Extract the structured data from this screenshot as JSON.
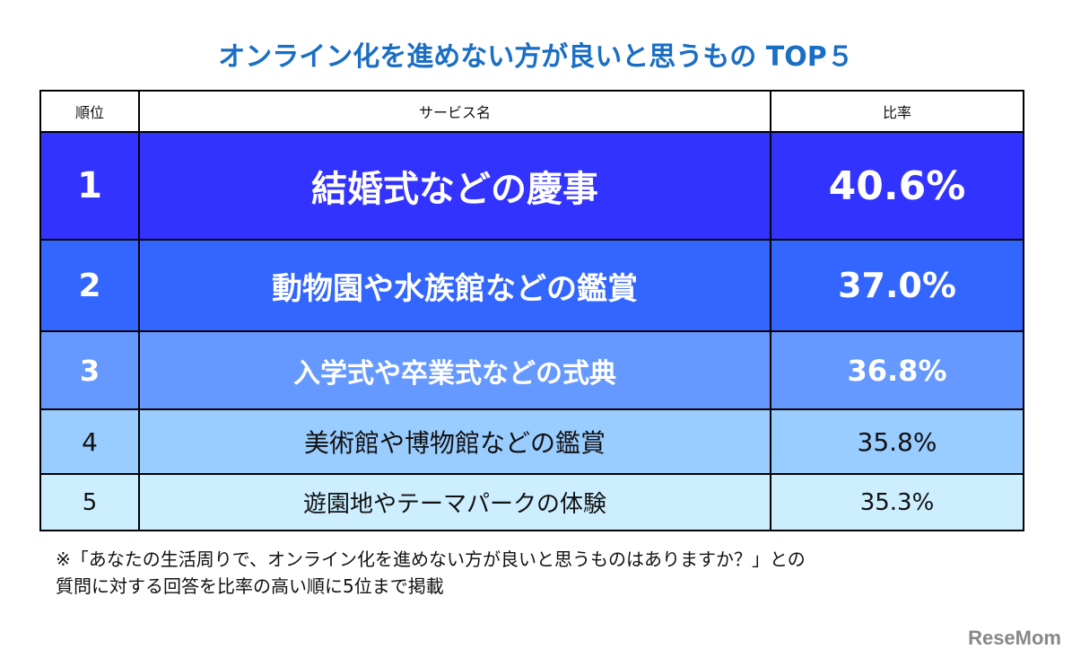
{
  "title": "オンライン化を進めない方が良いと思うもの TOP５",
  "table": {
    "headers": [
      "順位",
      "サービス名",
      "比率"
    ],
    "rows": [
      {
        "rank": "1",
        "name": "結婚式などの慶事",
        "rate": "40.6%",
        "bg": "#3333ff"
      },
      {
        "rank": "2",
        "name": "動物園や水族館などの鑑賞",
        "rate": "37.0%",
        "bg": "#3366ff"
      },
      {
        "rank": "3",
        "name": "入学式や卒業式などの式典",
        "rate": "36.8%",
        "bg": "#6699ff"
      },
      {
        "rank": "4",
        "name": "美術館や博物館などの鑑賞",
        "rate": "35.8%",
        "bg": "#99ccff"
      },
      {
        "rank": "5",
        "name": "遊園地やテーマパークの体験",
        "rate": "35.3%",
        "bg": "#cceeff"
      }
    ]
  },
  "note": {
    "line1": "※「あなたの生活周りで、オンライン化を進めない方が良いと思うものはありますか？」との",
    "line2": "質問に対する回答を比率の高い順に5位まで掲載"
  },
  "logo": "ReseMom",
  "chart_data": {
    "type": "table",
    "title": "オンライン化を進めない方が良いと思うもの TOP５",
    "columns": [
      "順位",
      "サービス名",
      "比率"
    ],
    "categories": [
      "結婚式などの慶事",
      "動物園や水族館などの鑑賞",
      "入学式や卒業式などの式典",
      "美術館や博物館などの鑑賞",
      "遊園地やテーマパークの体験"
    ],
    "values": [
      40.6,
      37.0,
      36.8,
      35.8,
      35.3
    ],
    "unit": "%"
  }
}
